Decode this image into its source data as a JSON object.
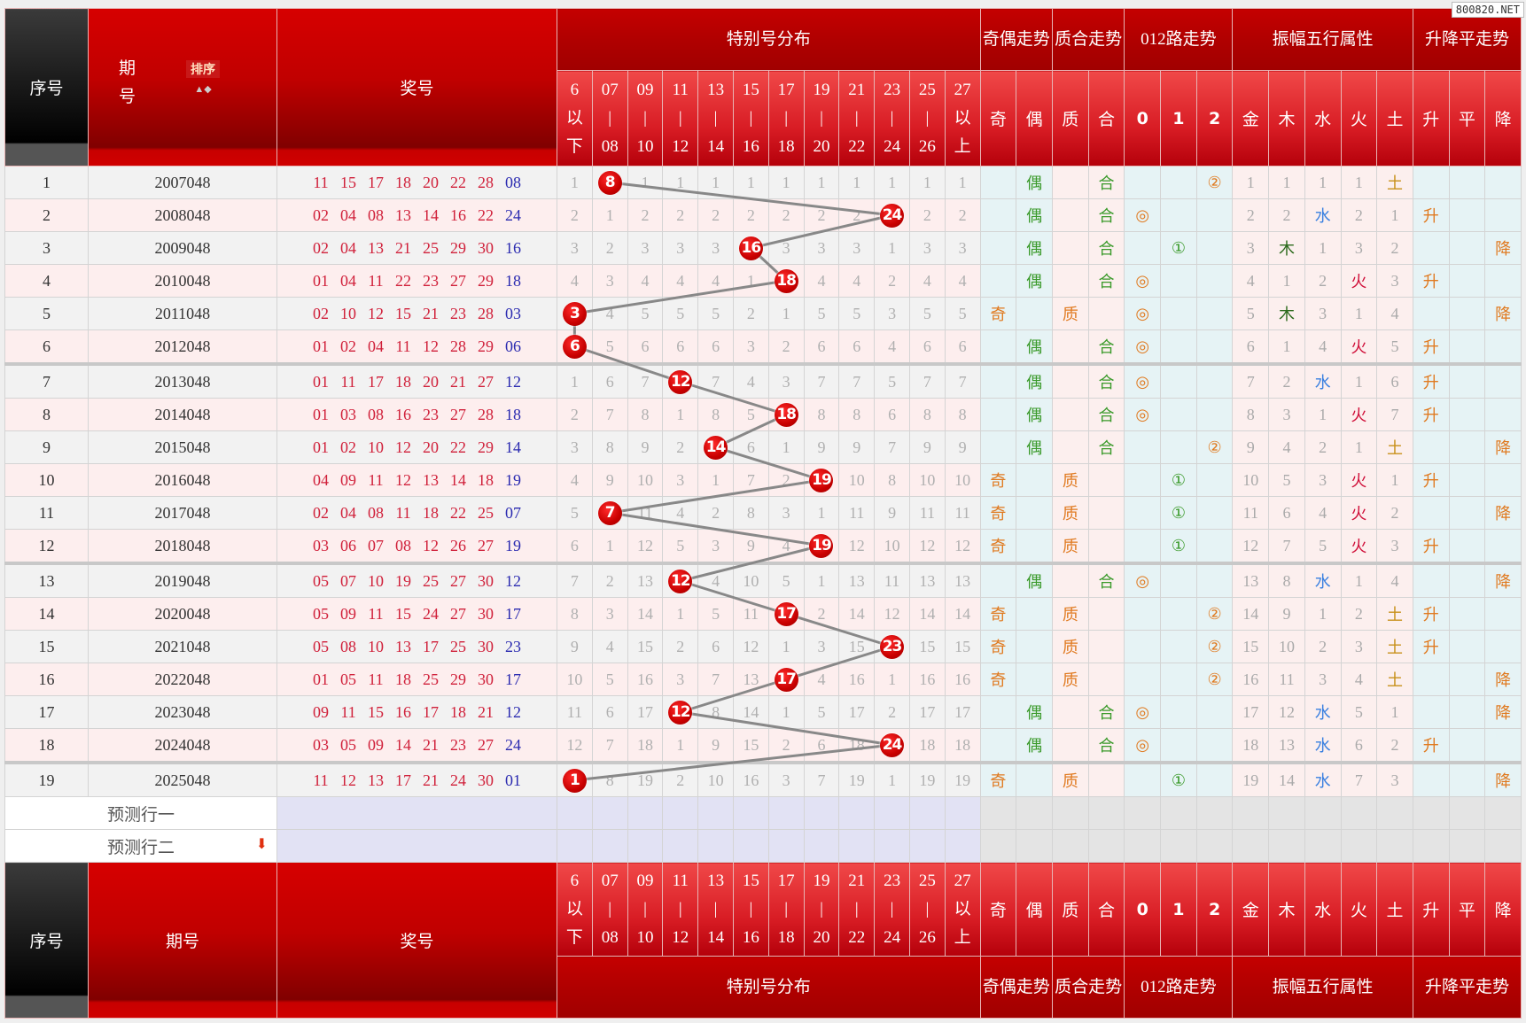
{
  "watermark": "800820.NET",
  "header": {
    "seq": "序号",
    "issue": "期号",
    "issue_top": "期",
    "issue_bottom": "号",
    "sort_label": "排序",
    "numbers": "奖号",
    "groups": [
      "特别号分布",
      "奇偶走势",
      "质合走势",
      "012路走势",
      "振幅五行属性",
      "升降平走势"
    ],
    "dist_columns": [
      [
        "6",
        "以",
        "下"
      ],
      [
        "07",
        "|",
        "08"
      ],
      [
        "09",
        "|",
        "10"
      ],
      [
        "11",
        "|",
        "12"
      ],
      [
        "13",
        "|",
        "14"
      ],
      [
        "15",
        "|",
        "16"
      ],
      [
        "17",
        "|",
        "18"
      ],
      [
        "19",
        "|",
        "20"
      ],
      [
        "21",
        "|",
        "22"
      ],
      [
        "23",
        "|",
        "24"
      ],
      [
        "25",
        "|",
        "26"
      ],
      [
        "27",
        "以",
        "上"
      ]
    ],
    "sub_columns": [
      "奇",
      "偶",
      "质",
      "合",
      "0",
      "1",
      "2",
      "金",
      "木",
      "水",
      "火",
      "土",
      "升",
      "平",
      "降"
    ]
  },
  "rows": [
    {
      "seq": "1",
      "issue": "2007048",
      "numbers": [
        "11",
        "15",
        "17",
        "18",
        "20",
        "22",
        "28"
      ],
      "special": "08",
      "dist": [
        "1",
        "8",
        "1",
        "1",
        "1",
        "1",
        "1",
        "1",
        "1",
        "1",
        "1",
        "1"
      ],
      "hit": 1,
      "oe": "偶",
      "pc": "合",
      "r012": {
        "col": 2,
        "sym": "②"
      },
      "wx": [
        "1",
        "1",
        "1",
        "1",
        "土"
      ],
      "trend": ""
    },
    {
      "seq": "2",
      "issue": "2008048",
      "numbers": [
        "02",
        "04",
        "08",
        "13",
        "14",
        "16",
        "22"
      ],
      "special": "24",
      "dist": [
        "2",
        "1",
        "2",
        "2",
        "2",
        "2",
        "2",
        "2",
        "2",
        "24",
        "2",
        "2"
      ],
      "hit": 9,
      "oe": "偶",
      "pc": "合",
      "r012": {
        "col": 0,
        "sym": "◎"
      },
      "wx": [
        "2",
        "2",
        "水",
        "2",
        "1"
      ],
      "trend": "升"
    },
    {
      "seq": "3",
      "issue": "2009048",
      "numbers": [
        "02",
        "04",
        "13",
        "21",
        "25",
        "29",
        "30"
      ],
      "special": "16",
      "dist": [
        "3",
        "2",
        "3",
        "3",
        "3",
        "16",
        "3",
        "3",
        "3",
        "1",
        "3",
        "3"
      ],
      "hit": 5,
      "oe": "偶",
      "pc": "合",
      "r012": {
        "col": 1,
        "sym": "①"
      },
      "wx": [
        "3",
        "木",
        "1",
        "3",
        "2"
      ],
      "trend": "降"
    },
    {
      "seq": "4",
      "issue": "2010048",
      "numbers": [
        "01",
        "04",
        "11",
        "22",
        "23",
        "27",
        "29"
      ],
      "special": "18",
      "dist": [
        "4",
        "3",
        "4",
        "4",
        "4",
        "1",
        "18",
        "4",
        "4",
        "2",
        "4",
        "4"
      ],
      "hit": 6,
      "oe": "偶",
      "pc": "合",
      "r012": {
        "col": 0,
        "sym": "◎"
      },
      "wx": [
        "4",
        "1",
        "2",
        "火",
        "3"
      ],
      "trend": "升"
    },
    {
      "seq": "5",
      "issue": "2011048",
      "numbers": [
        "02",
        "10",
        "12",
        "15",
        "21",
        "23",
        "28"
      ],
      "special": "03",
      "dist": [
        "3",
        "4",
        "5",
        "5",
        "5",
        "2",
        "1",
        "5",
        "5",
        "3",
        "5",
        "5"
      ],
      "hit": 0,
      "oe": "奇",
      "pc": "质",
      "r012": {
        "col": 0,
        "sym": "◎"
      },
      "wx": [
        "5",
        "木",
        "3",
        "1",
        "4"
      ],
      "trend": "降"
    },
    {
      "seq": "6",
      "issue": "2012048",
      "numbers": [
        "01",
        "02",
        "04",
        "11",
        "12",
        "28",
        "29"
      ],
      "special": "06",
      "dist": [
        "6",
        "5",
        "6",
        "6",
        "6",
        "3",
        "2",
        "6",
        "6",
        "4",
        "6",
        "6"
      ],
      "hit": 0,
      "oe": "偶",
      "pc": "合",
      "r012": {
        "col": 0,
        "sym": "◎"
      },
      "wx": [
        "6",
        "1",
        "4",
        "火",
        "5"
      ],
      "trend": "升"
    },
    {
      "seq": "7",
      "issue": "2013048",
      "numbers": [
        "01",
        "11",
        "17",
        "18",
        "20",
        "21",
        "27"
      ],
      "special": "12",
      "dist": [
        "1",
        "6",
        "7",
        "12",
        "7",
        "4",
        "3",
        "7",
        "7",
        "5",
        "7",
        "7"
      ],
      "hit": 3,
      "oe": "偶",
      "pc": "合",
      "r012": {
        "col": 0,
        "sym": "◎"
      },
      "wx": [
        "7",
        "2",
        "水",
        "1",
        "6"
      ],
      "trend": "升"
    },
    {
      "seq": "8",
      "issue": "2014048",
      "numbers": [
        "01",
        "03",
        "08",
        "16",
        "23",
        "27",
        "28"
      ],
      "special": "18",
      "dist": [
        "2",
        "7",
        "8",
        "1",
        "8",
        "5",
        "18",
        "8",
        "8",
        "6",
        "8",
        "8"
      ],
      "hit": 6,
      "oe": "偶",
      "pc": "合",
      "r012": {
        "col": 0,
        "sym": "◎"
      },
      "wx": [
        "8",
        "3",
        "1",
        "火",
        "7"
      ],
      "trend": "升"
    },
    {
      "seq": "9",
      "issue": "2015048",
      "numbers": [
        "01",
        "02",
        "10",
        "12",
        "20",
        "22",
        "29"
      ],
      "special": "14",
      "dist": [
        "3",
        "8",
        "9",
        "2",
        "14",
        "6",
        "1",
        "9",
        "9",
        "7",
        "9",
        "9"
      ],
      "hit": 4,
      "oe": "偶",
      "pc": "合",
      "r012": {
        "col": 2,
        "sym": "②"
      },
      "wx": [
        "9",
        "4",
        "2",
        "1",
        "土"
      ],
      "trend": "降"
    },
    {
      "seq": "10",
      "issue": "2016048",
      "numbers": [
        "04",
        "09",
        "11",
        "12",
        "13",
        "14",
        "18"
      ],
      "special": "19",
      "dist": [
        "4",
        "9",
        "10",
        "3",
        "1",
        "7",
        "2",
        "19",
        "10",
        "8",
        "10",
        "10"
      ],
      "hit": 7,
      "oe": "奇",
      "pc": "质",
      "r012": {
        "col": 1,
        "sym": "①"
      },
      "wx": [
        "10",
        "5",
        "3",
        "火",
        "1"
      ],
      "trend": "升"
    },
    {
      "seq": "11",
      "issue": "2017048",
      "numbers": [
        "02",
        "04",
        "08",
        "11",
        "18",
        "22",
        "25"
      ],
      "special": "07",
      "dist": [
        "5",
        "7",
        "11",
        "4",
        "2",
        "8",
        "3",
        "1",
        "11",
        "9",
        "11",
        "11"
      ],
      "hit": 1,
      "oe": "奇",
      "pc": "质",
      "r012": {
        "col": 1,
        "sym": "①"
      },
      "wx": [
        "11",
        "6",
        "4",
        "火",
        "2"
      ],
      "trend": "降"
    },
    {
      "seq": "12",
      "issue": "2018048",
      "numbers": [
        "03",
        "06",
        "07",
        "08",
        "12",
        "26",
        "27"
      ],
      "special": "19",
      "dist": [
        "6",
        "1",
        "12",
        "5",
        "3",
        "9",
        "4",
        "19",
        "12",
        "10",
        "12",
        "12"
      ],
      "hit": 7,
      "oe": "奇",
      "pc": "质",
      "r012": {
        "col": 1,
        "sym": "①"
      },
      "wx": [
        "12",
        "7",
        "5",
        "火",
        "3"
      ],
      "trend": "升"
    },
    {
      "seq": "13",
      "issue": "2019048",
      "numbers": [
        "05",
        "07",
        "10",
        "19",
        "25",
        "27",
        "30"
      ],
      "special": "12",
      "dist": [
        "7",
        "2",
        "13",
        "12",
        "4",
        "10",
        "5",
        "1",
        "13",
        "11",
        "13",
        "13"
      ],
      "hit": 3,
      "oe": "偶",
      "pc": "合",
      "r012": {
        "col": 0,
        "sym": "◎"
      },
      "wx": [
        "13",
        "8",
        "水",
        "1",
        "4"
      ],
      "trend": "降"
    },
    {
      "seq": "14",
      "issue": "2020048",
      "numbers": [
        "05",
        "09",
        "11",
        "15",
        "24",
        "27",
        "30"
      ],
      "special": "17",
      "dist": [
        "8",
        "3",
        "14",
        "1",
        "5",
        "11",
        "17",
        "2",
        "14",
        "12",
        "14",
        "14"
      ],
      "hit": 6,
      "oe": "奇",
      "pc": "质",
      "r012": {
        "col": 2,
        "sym": "②"
      },
      "wx": [
        "14",
        "9",
        "1",
        "2",
        "土"
      ],
      "trend": "升"
    },
    {
      "seq": "15",
      "issue": "2021048",
      "numbers": [
        "05",
        "08",
        "10",
        "13",
        "17",
        "25",
        "30"
      ],
      "special": "23",
      "dist": [
        "9",
        "4",
        "15",
        "2",
        "6",
        "12",
        "1",
        "3",
        "15",
        "23",
        "15",
        "15"
      ],
      "hit": 9,
      "oe": "奇",
      "pc": "质",
      "r012": {
        "col": 2,
        "sym": "②"
      },
      "wx": [
        "15",
        "10",
        "2",
        "3",
        "土"
      ],
      "trend": "升"
    },
    {
      "seq": "16",
      "issue": "2022048",
      "numbers": [
        "01",
        "05",
        "11",
        "18",
        "25",
        "29",
        "30"
      ],
      "special": "17",
      "dist": [
        "10",
        "5",
        "16",
        "3",
        "7",
        "13",
        "17",
        "4",
        "16",
        "1",
        "16",
        "16"
      ],
      "hit": 6,
      "oe": "奇",
      "pc": "质",
      "r012": {
        "col": 2,
        "sym": "②"
      },
      "wx": [
        "16",
        "11",
        "3",
        "4",
        "土"
      ],
      "trend": "降"
    },
    {
      "seq": "17",
      "issue": "2023048",
      "numbers": [
        "09",
        "11",
        "15",
        "16",
        "17",
        "18",
        "21"
      ],
      "special": "12",
      "dist": [
        "11",
        "6",
        "17",
        "12",
        "8",
        "14",
        "1",
        "5",
        "17",
        "2",
        "17",
        "17"
      ],
      "hit": 3,
      "oe": "偶",
      "pc": "合",
      "r012": {
        "col": 0,
        "sym": "◎"
      },
      "wx": [
        "17",
        "12",
        "水",
        "5",
        "1"
      ],
      "trend": "降"
    },
    {
      "seq": "18",
      "issue": "2024048",
      "numbers": [
        "03",
        "05",
        "09",
        "14",
        "21",
        "23",
        "27"
      ],
      "special": "24",
      "dist": [
        "12",
        "7",
        "18",
        "1",
        "9",
        "15",
        "2",
        "6",
        "18",
        "24",
        "18",
        "18"
      ],
      "hit": 9,
      "oe": "偶",
      "pc": "合",
      "r012": {
        "col": 0,
        "sym": "◎"
      },
      "wx": [
        "18",
        "13",
        "水",
        "6",
        "2"
      ],
      "trend": "升"
    },
    {
      "seq": "19",
      "issue": "2025048",
      "numbers": [
        "11",
        "12",
        "13",
        "17",
        "21",
        "24",
        "30"
      ],
      "special": "01",
      "dist": [
        "1",
        "8",
        "19",
        "2",
        "10",
        "16",
        "3",
        "7",
        "19",
        "1",
        "19",
        "19"
      ],
      "hit": 0,
      "oe": "奇",
      "pc": "质",
      "r012": {
        "col": 1,
        "sym": "①"
      },
      "wx": [
        "19",
        "14",
        "水",
        "7",
        "3"
      ],
      "trend": "降"
    }
  ],
  "prediction_rows": [
    "预测行一",
    "预测行二"
  ],
  "colors": {
    "header_red": "#c40000",
    "ball_red": "#c80000",
    "special_blue": "#2a2ab0",
    "number_red": "#d0203a"
  }
}
